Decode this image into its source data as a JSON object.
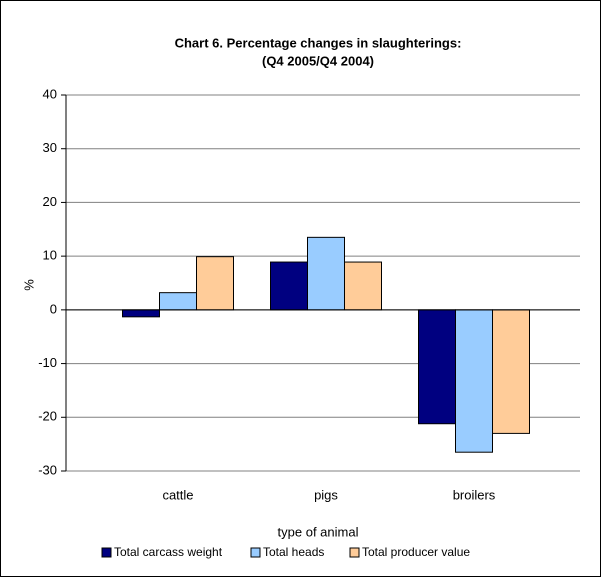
{
  "chart_data": {
    "type": "bar",
    "title": "Chart 6.  Percentage changes in slaughterings:",
    "subtitle": "(Q4 2005/Q4 2004)",
    "x_label": "type of animal",
    "y_label": "%",
    "categories": [
      "cattle",
      "pigs",
      "broilers"
    ],
    "series": [
      {
        "name": "Total carcass weight",
        "color": "#000080",
        "values": [
          -1.3,
          8.9,
          -21.2
        ]
      },
      {
        "name": "Total heads",
        "color": "#99ccff",
        "values": [
          3.2,
          13.5,
          -26.5
        ]
      },
      {
        "name": "Total producer value",
        "color": "#ffcc99",
        "values": [
          9.9,
          8.9,
          -23.0
        ]
      }
    ],
    "ylim": [
      -30,
      40
    ],
    "yticks": [
      -30,
      -20,
      -10,
      0,
      10,
      20,
      30,
      40
    ],
    "grid": true
  }
}
